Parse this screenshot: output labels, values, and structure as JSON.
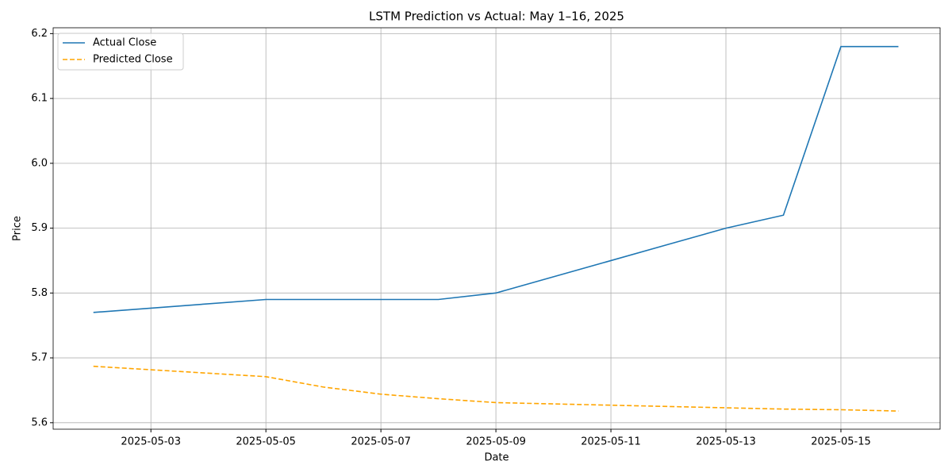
{
  "chart_data": {
    "type": "line",
    "title": "LSTM Prediction vs Actual: May 1–16, 2025",
    "xlabel": "Date",
    "ylabel": "Price",
    "x": [
      "2025-05-02",
      "2025-05-05",
      "2025-05-06",
      "2025-05-07",
      "2025-05-08",
      "2025-05-09",
      "2025-05-12",
      "2025-05-13",
      "2025-05-14",
      "2025-05-15",
      "2025-05-16"
    ],
    "series": [
      {
        "name": "Actual Close",
        "color": "#1f77b4",
        "dash": false,
        "values": [
          5.77,
          5.79,
          5.79,
          5.79,
          5.79,
          5.8,
          5.875,
          5.9,
          5.92,
          6.18,
          6.18
        ]
      },
      {
        "name": "Predicted Close",
        "color": "#ffa500",
        "dash": true,
        "values": [
          5.687,
          5.671,
          5.655,
          5.644,
          5.637,
          5.631,
          5.625,
          5.623,
          5.621,
          5.62,
          5.618
        ]
      }
    ],
    "xlim": [
      "2025-05-01T07:12:00Z",
      "2025-05-16T17:24:00Z"
    ],
    "xticks": [
      "2025-05-03",
      "2025-05-05",
      "2025-05-07",
      "2025-05-09",
      "2025-05-11",
      "2025-05-13",
      "2025-05-15"
    ],
    "ylim": [
      5.59,
      6.209
    ],
    "yticks": [
      5.6,
      5.7,
      5.8,
      5.9,
      {
        "value": 6.0,
        "label": "6.0"
      },
      6.1,
      6.2
    ],
    "grid": true,
    "legend": "upper left"
  }
}
